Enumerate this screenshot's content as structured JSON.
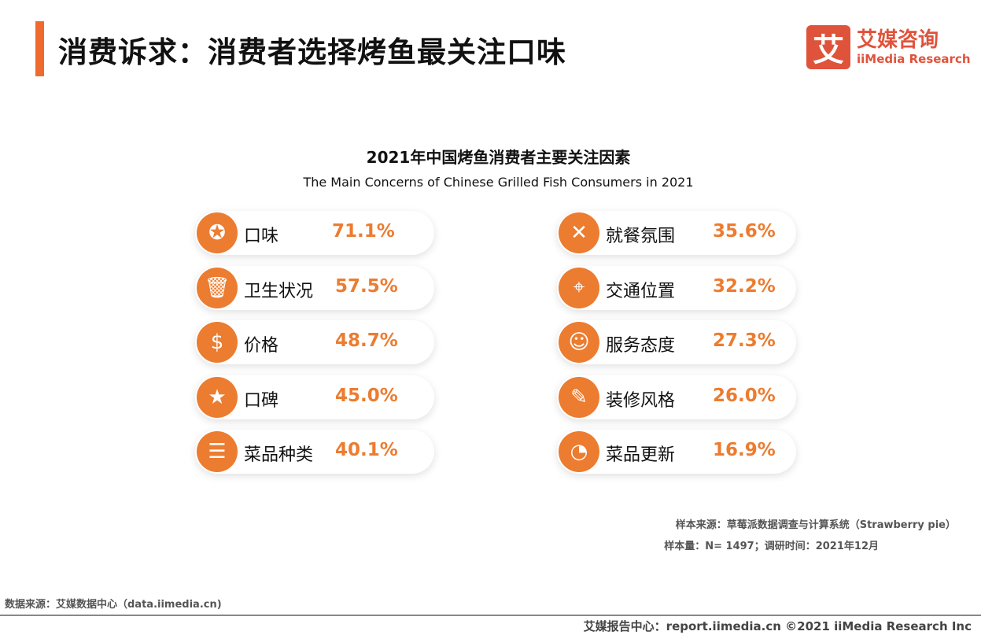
{
  "header": {
    "title": "消费诉求：消费者选择烤鱼最关注口味",
    "logo_mark": "艾",
    "logo_cn": "艾媒咨询",
    "logo_en": "iiMedia Research",
    "accent": "#EF6A2E"
  },
  "chart": {
    "title": "2021年中国烤鱼消费者主要关注因素",
    "subtitle": "The Main Concerns of Chinese  Grilled Fish Consumers in 2021",
    "value_color": "#EC7C30",
    "items": [
      {
        "label": "口味",
        "value": "71.1%",
        "icon": "taste-badge-icon",
        "glyph": "✪"
      },
      {
        "label": "卫生状况",
        "value": "57.5%",
        "icon": "trash-bin-icon",
        "glyph": "🗑"
      },
      {
        "label": "价格",
        "value": "48.7%",
        "icon": "price-tag-icon",
        "glyph": "$"
      },
      {
        "label": "口碑",
        "value": "45.0%",
        "icon": "star-list-icon",
        "glyph": "★"
      },
      {
        "label": "菜品种类",
        "value": "40.1%",
        "icon": "menu-icon",
        "glyph": "☰"
      },
      {
        "label": "就餐氛围",
        "value": "35.6%",
        "icon": "fork-knife-icon",
        "glyph": "✕"
      },
      {
        "label": "交通位置",
        "value": "32.2%",
        "icon": "map-icon",
        "glyph": "⌖"
      },
      {
        "label": "服务态度",
        "value": "27.3%",
        "icon": "waiter-icon",
        "glyph": "☺"
      },
      {
        "label": "装修风格",
        "value": "26.0%",
        "icon": "paint-roller-icon",
        "glyph": "✎"
      },
      {
        "label": "菜品更新",
        "value": "16.9%",
        "icon": "gauge-icon",
        "glyph": "◔"
      }
    ]
  },
  "notes": {
    "sample_source": "样本来源：草莓派数据调查与计算系统（Strawberry pie）",
    "sample_size": "样本量：N= 1497；调研时间：2021年12月"
  },
  "footer": {
    "data_source": "数据来源：艾媒数据中心（data.iimedia.cn)",
    "report": "艾媒报告中心：report.iimedia.cn   ©2021  iiMedia Research  Inc"
  }
}
